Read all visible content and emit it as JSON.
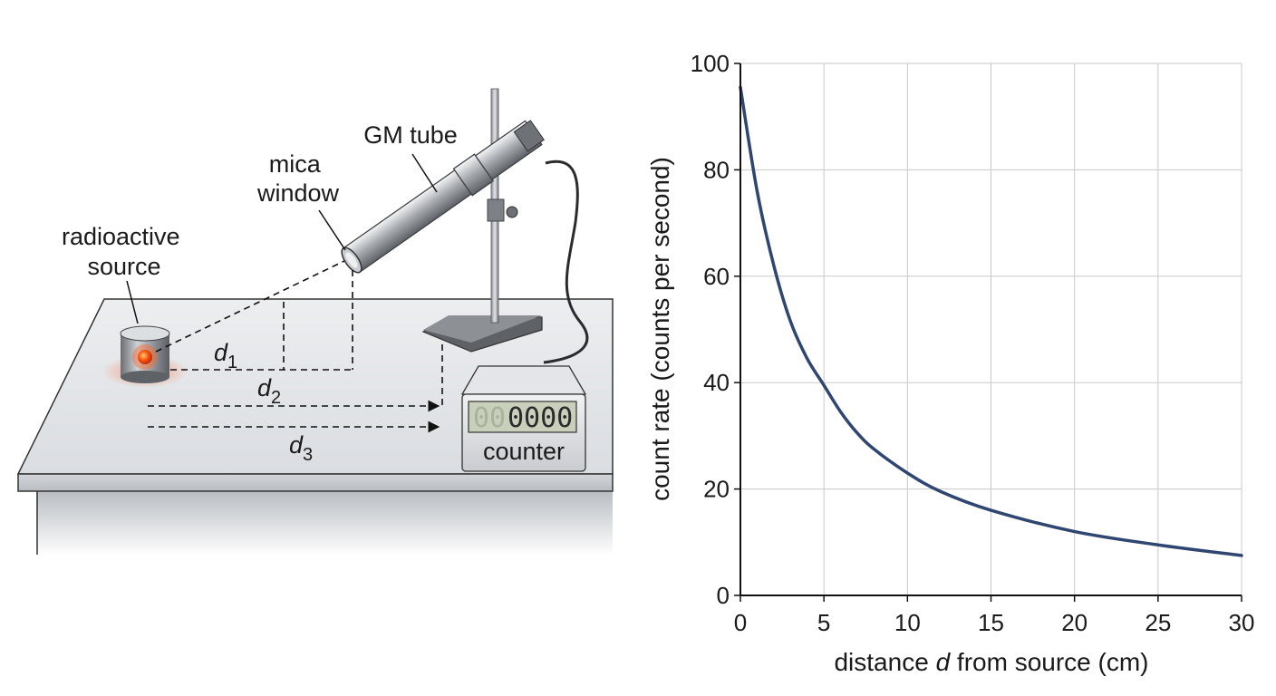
{
  "diagram": {
    "labels": {
      "source": [
        "radioactive",
        "source"
      ],
      "window": [
        "mica",
        "window"
      ],
      "tube": "GM tube",
      "counter": "counter"
    },
    "distances": [
      {
        "base": "d",
        "sub": "1"
      },
      {
        "base": "d",
        "sub": "2"
      },
      {
        "base": "d",
        "sub": "3"
      }
    ],
    "counter_display": {
      "dim": "00",
      "value": "0000"
    }
  },
  "chart_data": {
    "type": "line",
    "xlabel_parts": [
      "distance ",
      "d",
      " from source (cm)"
    ],
    "ylabel": "count rate (counts per second)",
    "xlim": [
      0,
      30
    ],
    "ylim": [
      0,
      100
    ],
    "x_ticks": [
      0,
      5,
      10,
      15,
      20,
      25,
      30
    ],
    "y_ticks": [
      0,
      20,
      40,
      60,
      80,
      100
    ],
    "grid": true,
    "line_color": "#2f4670",
    "series": [
      {
        "x": [
          0,
          1,
          2,
          3,
          4,
          5,
          6,
          7,
          8,
          10,
          12,
          15,
          20,
          25,
          30
        ],
        "y": [
          95.5,
          76,
          62,
          51.5,
          44.5,
          39.5,
          34.5,
          30.5,
          27.5,
          23,
          19.5,
          16,
          12,
          9.5,
          7.5
        ]
      }
    ]
  }
}
